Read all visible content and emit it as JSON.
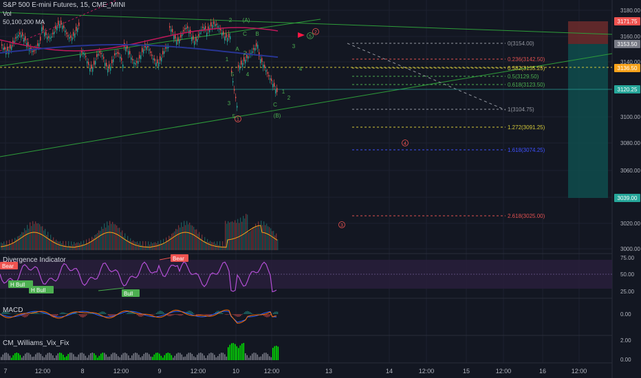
{
  "header": {
    "symbol": "S&P 500 E-mini Futures, 15, CME_MINI",
    "vol": "Vol",
    "ma": "50,100,200 MA"
  },
  "panes": {
    "divergence_title": "Divergence Indicator",
    "macd_title": "MACD",
    "vix_title": "CM_Williams_Vix_Fix"
  },
  "colors": {
    "background": "#131722",
    "grid": "#1e2230",
    "axis_text": "#b2b5be",
    "fib_red": "#e05050",
    "fib_yellow": "#d4c93a",
    "fib_green": "#4caf50",
    "fib_blue": "#3f51ff",
    "fib_gray": "#9598a1",
    "trend_green": "#2e9e3a",
    "price_up": "#26a69a",
    "price_down": "#ef5350",
    "ma_red": "#c2185b",
    "ma_blue": "#283593",
    "stop_zone": "#6d2b2b",
    "target_zone": "#0f4c4c",
    "wave_green": "#4caf50",
    "wave_red": "#ef5350",
    "rsi_line": "#b44fd6",
    "rsi_band": "#2a1f3d",
    "macd_line": "#2962ff",
    "signal_line": "#ff6d00",
    "vix_green": "#00e600",
    "vix_gray": "#787b86"
  },
  "price_axis": {
    "ticks": [
      "3180.00",
      "3160.00",
      "3140.00",
      "3120.00",
      "3100.00",
      "3080.00",
      "3060.00",
      "3040.00",
      "3020.00",
      "3000.00"
    ],
    "tags": [
      {
        "text": "3171.75",
        "color": "#ef5350"
      },
      {
        "text": "3153.50",
        "color": "#787b86"
      },
      {
        "text": "3136.50",
        "color": "#f7a21b"
      },
      {
        "text": "3120.25",
        "color": "#26a69a"
      },
      {
        "text": "3039.00",
        "color": "#26a69a"
      }
    ]
  },
  "rsi_axis": {
    "ticks": [
      "75.00",
      "50.00",
      "25.00"
    ]
  },
  "macd_axis": {
    "ticks": [
      "0.00"
    ]
  },
  "vix_axis": {
    "ticks": [
      "2.00",
      "0.00"
    ]
  },
  "time_axis": {
    "labels": [
      "7",
      "12:00",
      "8",
      "12:00",
      "9",
      "12:00",
      "10",
      "12:00",
      "13",
      "14",
      "12:00",
      "15",
      "12:00",
      "16",
      "12:00"
    ]
  },
  "fib_levels": [
    {
      "label": "0(3154.00)",
      "color": "#9598a1"
    },
    {
      "label": "0.236(3142.50)",
      "color": "#e05050"
    },
    {
      "label": "0.382(3135.25)",
      "color": "#d4c93a"
    },
    {
      "label": "0.5(3129.50)",
      "color": "#4caf50"
    },
    {
      "label": "0.618(3123.50)",
      "color": "#4caf50"
    },
    {
      "label": "1(3104.75)",
      "color": "#9598a1"
    },
    {
      "label": "1.272(3091.25)",
      "color": "#d4c93a"
    },
    {
      "label": "1.618(3074.25)",
      "color": "#3f51ff"
    },
    {
      "label": "2.618(3025.00)",
      "color": "#e05050"
    }
  ],
  "waves": {
    "green": [
      "2",
      "(A)",
      "C",
      "B",
      "A",
      "3",
      "4",
      "1",
      "5",
      "4",
      "2",
      "3",
      "1",
      "2",
      "C",
      "5",
      "(B)"
    ],
    "red": [
      "2",
      "1",
      "4",
      "3"
    ],
    "highlighted": "5"
  },
  "divergence_tags": [
    {
      "text": "Bear",
      "color": "#ef5350"
    },
    {
      "text": "Bear",
      "color": "#ef5350"
    },
    {
      "text": "H Bull",
      "color": "#4caf50"
    },
    {
      "text": "H Bull",
      "color": "#4caf50"
    },
    {
      "text": "Bull",
      "color": "#4caf50"
    }
  ]
}
